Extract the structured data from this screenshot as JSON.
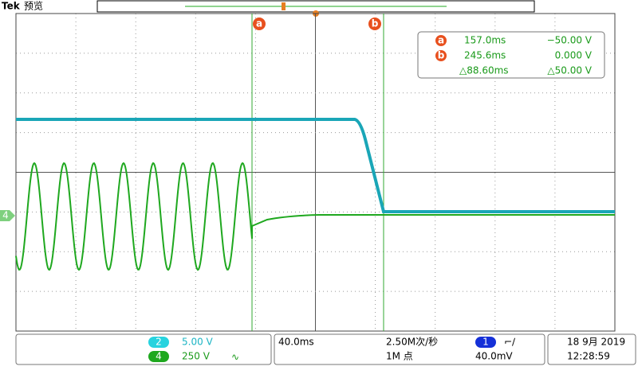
{
  "header": {
    "brand": "Tek",
    "mode": "预览"
  },
  "cursors": {
    "a": {
      "label": "a"
    },
    "b": {
      "label": "b"
    }
  },
  "readout": {
    "rows": [
      {
        "badge": "a",
        "time": "157.0ms",
        "value": "−50.00 V"
      },
      {
        "badge": "b",
        "time": "245.6ms",
        "value": "0.000 V"
      },
      {
        "time": "△88.60ms",
        "value": "△50.00 V"
      }
    ]
  },
  "ground_marker": "4",
  "channels": [
    {
      "id": "2",
      "scale": "5.00 V"
    },
    {
      "id": "4",
      "scale": "250 V",
      "coupling": "∿"
    }
  ],
  "horizontal": {
    "scale": "40.0ms",
    "sample_rate": "2.50M次/秒",
    "record_length": "1M 点"
  },
  "trigger": {
    "source": "1",
    "slope": "⌐∕",
    "level": "40.0mV"
  },
  "clock": {
    "date": "18 9月 2019",
    "time": "12:28:59"
  }
}
